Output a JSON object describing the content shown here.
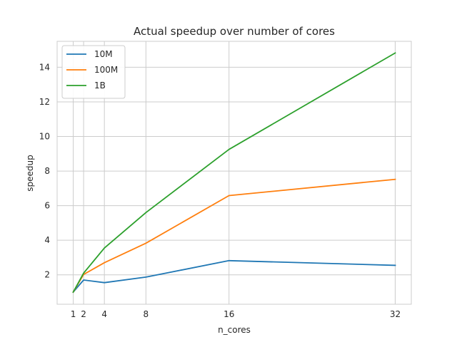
{
  "chart_data": {
    "type": "line",
    "title": "Actual speedup over number of cores",
    "xlabel": "n_cores",
    "ylabel": "speedup",
    "x": [
      1,
      2,
      4,
      8,
      16,
      32
    ],
    "xticks": [
      1,
      2,
      4,
      8,
      16,
      32
    ],
    "yticks": [
      2,
      4,
      6,
      8,
      10,
      12,
      14
    ],
    "xlim": [
      -0.55,
      33.55
    ],
    "ylim": [
      0.3,
      15.5
    ],
    "grid": true,
    "legend_position": "top-left",
    "series": [
      {
        "name": "10M",
        "color": "#1f77b4",
        "values": [
          1.0,
          1.7,
          1.55,
          1.87,
          2.82,
          2.55
        ]
      },
      {
        "name": "100M",
        "color": "#ff7f0e",
        "values": [
          1.0,
          2.02,
          2.7,
          3.83,
          6.58,
          7.52
        ]
      },
      {
        "name": "1B",
        "color": "#2ca02c",
        "values": [
          1.0,
          2.1,
          3.55,
          5.6,
          9.25,
          14.83
        ]
      }
    ]
  }
}
